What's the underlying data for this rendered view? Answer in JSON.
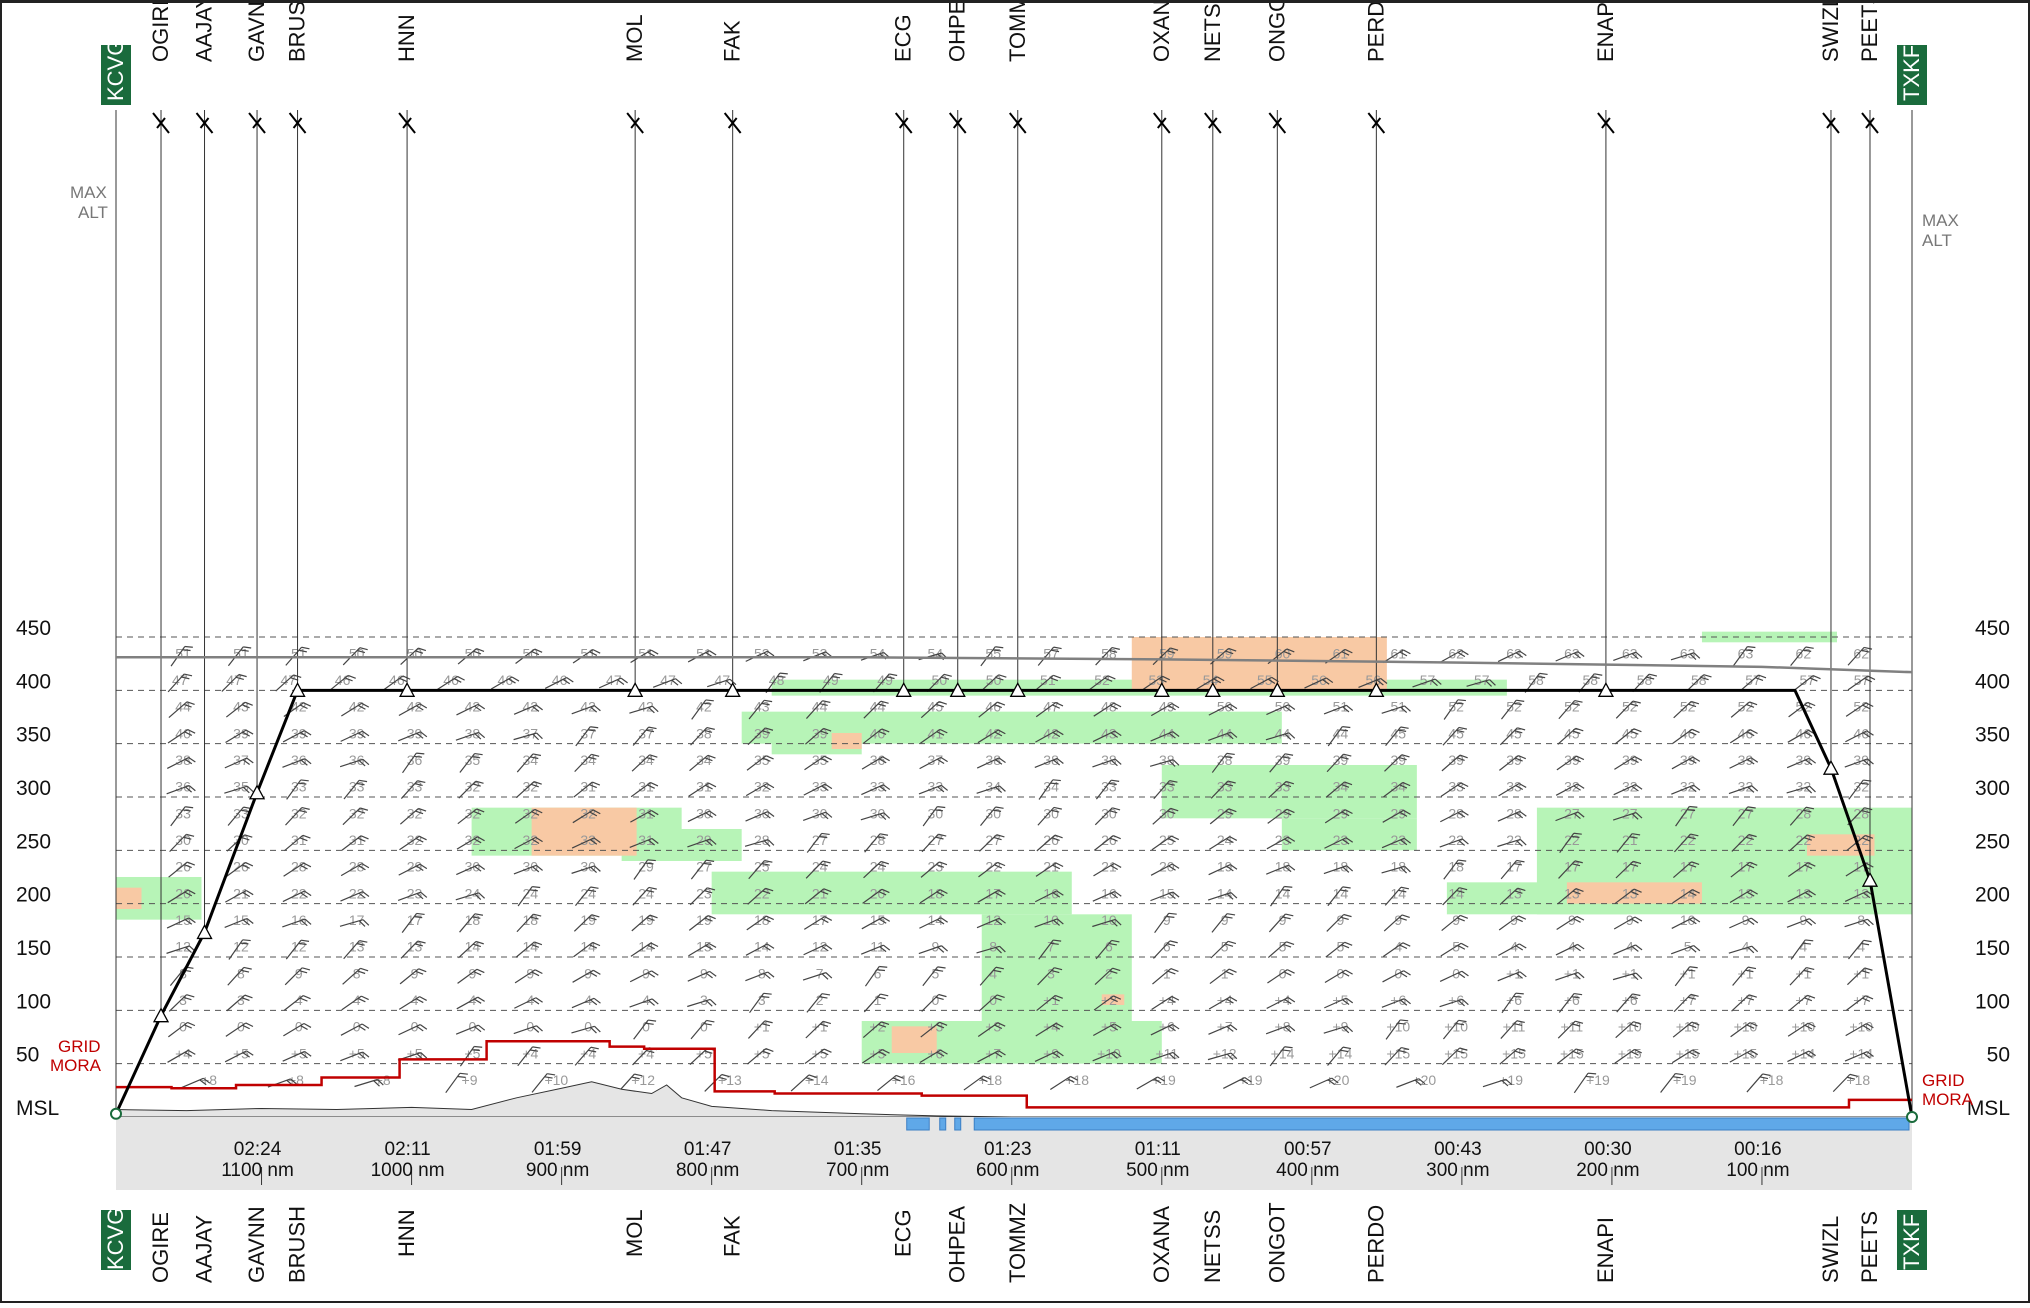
{
  "chart_data": {
    "type": "vertical-profile",
    "origin": "KCVG",
    "destination": "TXKF",
    "y_axis": {
      "ticks": [
        450,
        400,
        350,
        300,
        250,
        200,
        150,
        100,
        50
      ],
      "bottom_label": "MSL",
      "ylim": [
        0,
        450
      ]
    },
    "x_axis": {
      "range_nm": [
        1197,
        0
      ],
      "times": [
        {
          "time": "02:24",
          "dist_label": "1100 nm",
          "nm": 1100
        },
        {
          "time": "02:11",
          "dist_label": "1000 nm",
          "nm": 1000
        },
        {
          "time": "01:59",
          "dist_label": "900 nm",
          "nm": 900
        },
        {
          "time": "01:47",
          "dist_label": "800 nm",
          "nm": 800
        },
        {
          "time": "01:35",
          "dist_label": "700 nm",
          "nm": 700
        },
        {
          "time": "01:23",
          "dist_label": "600 nm",
          "nm": 600
        },
        {
          "time": "01:11",
          "dist_label": "500 nm",
          "nm": 500
        },
        {
          "time": "00:57",
          "dist_label": "400 nm",
          "nm": 400
        },
        {
          "time": "00:43",
          "dist_label": "300 nm",
          "nm": 300
        },
        {
          "time": "00:30",
          "dist_label": "200 nm",
          "nm": 200
        },
        {
          "time": "00:16",
          "dist_label": "100 nm",
          "nm": 100
        }
      ]
    },
    "waypoints": [
      {
        "name": "KCVG",
        "nm": 1197,
        "alt": 3,
        "airport": true
      },
      {
        "name": "OGIRE",
        "nm": 1167,
        "alt": 95
      },
      {
        "name": "AAJAY",
        "nm": 1138,
        "alt": 173
      },
      {
        "name": "GAVNN",
        "nm": 1103,
        "alt": 304
      },
      {
        "name": "BRUSH",
        "nm": 1076,
        "alt": 400
      },
      {
        "name": "HNN",
        "nm": 1003,
        "alt": 400
      },
      {
        "name": "MOL",
        "nm": 851,
        "alt": 400
      },
      {
        "name": "FAK",
        "nm": 786,
        "alt": 400
      },
      {
        "name": "ECG",
        "nm": 672,
        "alt": 400
      },
      {
        "name": "OHPEA",
        "nm": 636,
        "alt": 400
      },
      {
        "name": "TOMMZ",
        "nm": 596,
        "alt": 400
      },
      {
        "name": "OXANA",
        "nm": 500,
        "alt": 400
      },
      {
        "name": "NETSS",
        "nm": 466,
        "alt": 400
      },
      {
        "name": "ONGOT",
        "nm": 423,
        "alt": 400
      },
      {
        "name": "PERDO",
        "nm": 357,
        "alt": 400
      },
      {
        "name": "ENAPI",
        "nm": 204,
        "alt": 400
      },
      {
        "name": "SWIZL",
        "nm": 54,
        "alt": 327
      },
      {
        "name": "PEETS",
        "nm": 28,
        "alt": 222
      },
      {
        "name": "TXKF",
        "nm": 0,
        "alt": 0,
        "airport": true
      }
    ],
    "flight_profile": {
      "cruise_alt": 400,
      "tod_nm": 78
    },
    "max_alt": {
      "label_left": "MAX\nALT",
      "label_right": "MAX\nALT",
      "points": [
        [
          1197,
          431
        ],
        [
          700,
          431
        ],
        [
          500,
          429
        ],
        [
          300,
          426
        ],
        [
          100,
          422
        ],
        [
          0,
          417
        ]
      ]
    },
    "grid_mora": {
      "label_left": "GRID\nMORA",
      "label_right": "GRID\nMORA",
      "steps": [
        {
          "from": 1197,
          "to": 1160,
          "alt": 28
        },
        {
          "from": 1160,
          "to": 1117,
          "alt": 27
        },
        {
          "from": 1117,
          "to": 1060,
          "alt": 30
        },
        {
          "from": 1060,
          "to": 1008,
          "alt": 37
        },
        {
          "from": 1008,
          "to": 950,
          "alt": 54
        },
        {
          "from": 950,
          "to": 868,
          "alt": 71
        },
        {
          "from": 868,
          "to": 845,
          "alt": 66
        },
        {
          "from": 845,
          "to": 820,
          "alt": 64
        },
        {
          "from": 820,
          "to": 798,
          "alt": 64
        },
        {
          "from": 798,
          "to": 758,
          "alt": 24
        },
        {
          "from": 758,
          "to": 660,
          "alt": 22
        },
        {
          "from": 660,
          "to": 590,
          "alt": 20
        },
        {
          "from": 590,
          "to": 42,
          "alt": 9
        },
        {
          "from": 42,
          "to": 0,
          "alt": 16
        }
      ]
    },
    "terrain": {
      "points": [
        [
          1197,
          7
        ],
        [
          1150,
          6
        ],
        [
          1100,
          8
        ],
        [
          1050,
          7
        ],
        [
          1000,
          9
        ],
        [
          960,
          7
        ],
        [
          930,
          18
        ],
        [
          900,
          27
        ],
        [
          880,
          33
        ],
        [
          860,
          26
        ],
        [
          840,
          22
        ],
        [
          830,
          30
        ],
        [
          820,
          18
        ],
        [
          800,
          10
        ],
        [
          760,
          6
        ],
        [
          700,
          3
        ],
        [
          650,
          1
        ],
        [
          600,
          0
        ],
        [
          0,
          0
        ]
      ]
    },
    "water": [
      {
        "from": 670,
        "to": 655
      },
      {
        "from": 648,
        "to": 644
      },
      {
        "from": 638,
        "to": 634
      },
      {
        "from": 625,
        "to": 2
      }
    ],
    "temperature_levels": [
      {
        "alt": 430,
        "values": [
          "51",
          "51",
          "51",
          "50",
          "50",
          "50",
          "50",
          "51",
          "51",
          "51",
          "52",
          "53",
          "54",
          "54",
          "55",
          "57",
          "58",
          "59",
          "59",
          "60",
          "61",
          "61",
          "62",
          "63",
          "63",
          "63",
          "63",
          "63",
          "62",
          "62"
        ]
      },
      {
        "alt": 405,
        "values": [
          "47",
          "47",
          "47",
          "46",
          "46",
          "46",
          "46",
          "46",
          "47",
          "47",
          "47",
          "48",
          "49",
          "49",
          "50",
          "50",
          "51",
          "52",
          "53",
          "54",
          "55",
          "56",
          "56",
          "57",
          "57",
          "58",
          "58",
          "58",
          "58",
          "57",
          "57",
          "57"
        ]
      },
      {
        "alt": 380,
        "values": [
          "44",
          "43",
          "42",
          "42",
          "42",
          "42",
          "42",
          "42",
          "42",
          "42",
          "43",
          "44",
          "44",
          "45",
          "46",
          "47",
          "48",
          "49",
          "50",
          "50",
          "51",
          "51",
          "52",
          "52",
          "52",
          "52",
          "52",
          "52",
          "52",
          "52"
        ]
      },
      {
        "alt": 355,
        "values": [
          "40",
          "39",
          "39",
          "39",
          "39",
          "38",
          "37",
          "37",
          "37",
          "38",
          "39",
          "39",
          "40",
          "41",
          "42",
          "42",
          "43",
          "44",
          "44",
          "44",
          "44",
          "45",
          "45",
          "45",
          "45",
          "45",
          "46",
          "46",
          "46",
          "46"
        ]
      },
      {
        "alt": 330,
        "values": [
          "38",
          "37",
          "36",
          "36",
          "36",
          "35",
          "34",
          "34",
          "34",
          "34",
          "35",
          "35",
          "36",
          "37",
          "38",
          "38",
          "38",
          "38",
          "38",
          "39",
          "39",
          "39",
          "39",
          "39",
          "39",
          "39",
          "39",
          "39",
          "39",
          "39"
        ]
      },
      {
        "alt": 305,
        "values": [
          "36",
          "35",
          "33",
          "33",
          "33",
          "32",
          "32",
          "31",
          "31",
          "31",
          "32",
          "33",
          "33",
          "33",
          "34",
          "34",
          "33",
          "33",
          "33",
          "33",
          "34",
          "34",
          "33",
          "33",
          "32",
          "32",
          "32",
          "32",
          "32",
          "32"
        ]
      },
      {
        "alt": 280,
        "values": [
          "33",
          "33",
          "32",
          "32",
          "32",
          "32",
          "32",
          "32",
          "31",
          "30",
          "30",
          "30",
          "30",
          "30",
          "30",
          "30",
          "30",
          "30",
          "29",
          "29",
          "29",
          "29",
          "28",
          "28",
          "27",
          "27",
          "27",
          "27",
          "28",
          "28"
        ]
      },
      {
        "alt": 255,
        "values": [
          "30",
          "30",
          "31",
          "31",
          "32",
          "32",
          "32",
          "33",
          "31",
          "29",
          "28",
          "27",
          "28",
          "27",
          "27",
          "26",
          "26",
          "25",
          "24",
          "23",
          "23",
          "23",
          "22",
          "22",
          "22",
          "21",
          "22",
          "22",
          "22",
          "22"
        ]
      },
      {
        "alt": 230,
        "values": [
          "26",
          "26",
          "28",
          "28",
          "29",
          "30",
          "30",
          "30",
          "29",
          "27",
          "25",
          "24",
          "24",
          "23",
          "22",
          "21",
          "21",
          "20",
          "19",
          "18",
          "18",
          "18",
          "18",
          "17",
          "17",
          "17",
          "17",
          "17",
          "17",
          "17"
        ]
      },
      {
        "alt": 205,
        "values": [
          "20",
          "21",
          "22",
          "22",
          "23",
          "24",
          "24",
          "24",
          "24",
          "23",
          "22",
          "21",
          "20",
          "18",
          "17",
          "16",
          "16",
          "15",
          "14",
          "14",
          "14",
          "14",
          "14",
          "13",
          "13",
          "13",
          "14",
          "13",
          "13",
          "13"
        ]
      },
      {
        "alt": 180,
        "values": [
          "15",
          "15",
          "16",
          "17",
          "17",
          "18",
          "18",
          "19",
          "19",
          "19",
          "18",
          "17",
          "15",
          "14",
          "12",
          "10",
          "10",
          "9",
          "9",
          "9",
          "9",
          "9",
          "9",
          "9",
          "9",
          "9",
          "10",
          "9",
          "9",
          "8"
        ]
      },
      {
        "alt": 155,
        "values": [
          "12",
          "12",
          "12",
          "13",
          "13",
          "14",
          "14",
          "14",
          "14",
          "15",
          "14",
          "12",
          "11",
          "9",
          "8",
          "7",
          "6",
          "6",
          "5",
          "5",
          "5",
          "4",
          "5",
          "4",
          "4",
          "4",
          "5",
          "4",
          "4",
          "4"
        ]
      },
      {
        "alt": 130,
        "values": [
          "8",
          "8",
          "9",
          "8",
          "9",
          "9",
          "9",
          "9",
          "9",
          "9",
          "8",
          "7",
          "6",
          "5",
          "4",
          "3",
          "2",
          "1",
          "1",
          "0",
          "0",
          "0",
          "0",
          "+1",
          "+1",
          "+1",
          "+1",
          "+1",
          "+1",
          "+1"
        ]
      },
      {
        "alt": 105,
        "values": [
          "3",
          "3",
          "4",
          "4",
          "4",
          "4",
          "4",
          "4",
          "4",
          "3",
          "3",
          "2",
          "1",
          "0",
          "0",
          "+1",
          "+2",
          "+4",
          "+4",
          "+4",
          "+5",
          "+6",
          "+6",
          "+6",
          "+6",
          "+6",
          "+7",
          "+7",
          "+7",
          "+7"
        ]
      },
      {
        "alt": 80,
        "values": [
          "0",
          "0",
          "0",
          "0",
          "0",
          "0",
          "0",
          "0",
          "0",
          "0",
          "+1",
          "+1",
          "+2",
          "+3",
          "+3",
          "+4",
          "+5",
          "+6",
          "+7",
          "+8",
          "+9",
          "+10",
          "+10",
          "+11",
          "+11",
          "+10",
          "+10",
          "+10",
          "+10",
          "+10"
        ]
      },
      {
        "alt": 55,
        "values": [
          "+4",
          "+5",
          "+5",
          "+5",
          "+5",
          "+5",
          "+4",
          "+4",
          "+4",
          "+5",
          "+5",
          "+5",
          "+5",
          "+6",
          "+7",
          "+9",
          "+10",
          "+11",
          "+12",
          "+14",
          "+14",
          "+15",
          "+15",
          "+15",
          "+15",
          "+15",
          "+15",
          "+15",
          "+14",
          "+14"
        ]
      },
      {
        "alt": 30,
        "values": [
          "+8",
          "+8",
          "+8",
          "+9",
          "+10",
          "+12",
          "+13",
          "+14",
          "+16",
          "+18",
          "+18",
          "+19",
          "+19",
          "+20",
          "+20",
          "+19",
          "+19",
          "+19",
          "+18",
          "+18"
        ]
      }
    ],
    "turbulence": {
      "light": [
        [
          800,
          430,
          520,
          460
        ],
        [
          600,
          440,
          140,
          455
        ],
        [
          140,
          455,
          50,
          445
        ],
        [
          760,
          410,
          270,
          395
        ],
        [
          780,
          380,
          420,
          350
        ],
        [
          760,
          352,
          700,
          340
        ],
        [
          500,
          330,
          330,
          280
        ],
        [
          860,
          270,
          780,
          240
        ],
        [
          960,
          290,
          820,
          245
        ],
        [
          800,
          230,
          560,
          190
        ],
        [
          620,
          190,
          520,
          90
        ],
        [
          700,
          90,
          500,
          50
        ],
        [
          420,
          280,
          330,
          250
        ],
        [
          310,
          220,
          190,
          190
        ],
        [
          250,
          290,
          0,
          190
        ],
        [
          1197,
          225,
          1140,
          185
        ]
      ],
      "moderate": [
        [
          520,
          450,
          350,
          400
        ],
        [
          720,
          360,
          700,
          345
        ],
        [
          920,
          290,
          850,
          245
        ],
        [
          540,
          115,
          525,
          105
        ],
        [
          680,
          85,
          650,
          60
        ],
        [
          230,
          220,
          140,
          200
        ],
        [
          70,
          265,
          25,
          245
        ],
        [
          1197,
          215,
          1180,
          195
        ]
      ]
    },
    "legend": "none",
    "grid": "dashed horizontal at labeled flight levels"
  }
}
